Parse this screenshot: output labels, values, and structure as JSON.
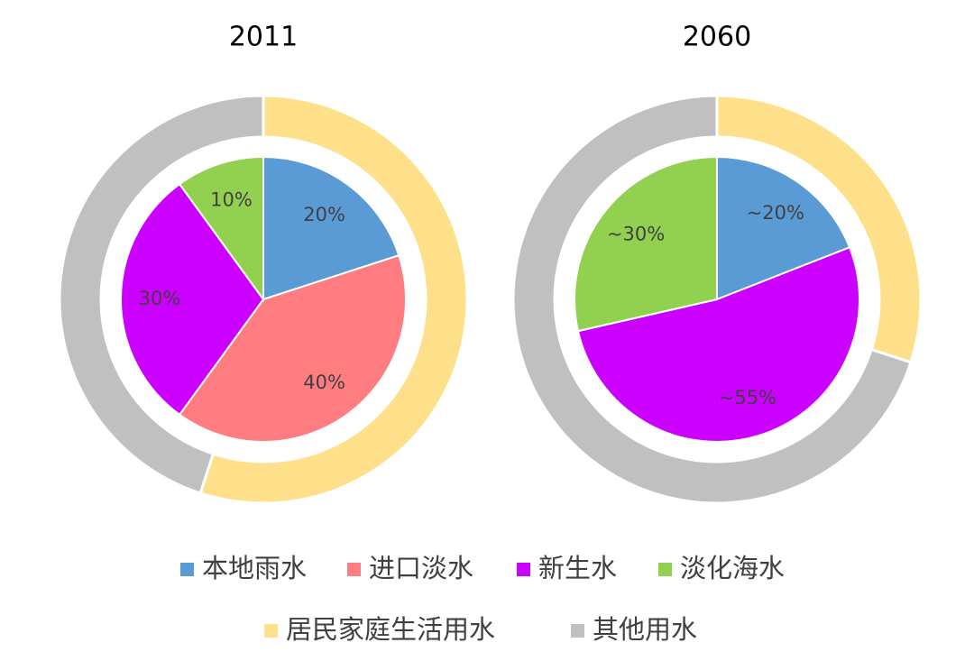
{
  "chart_data": [
    {
      "type": "nested-pie",
      "title": "2011",
      "inner": {
        "values": [
          20,
          40,
          30,
          10
        ],
        "value_labels": [
          "20%",
          "40%",
          "30%",
          "10%"
        ]
      },
      "outer": {
        "values": [
          55,
          45
        ]
      }
    },
    {
      "type": "nested-pie",
      "title": "2060",
      "inner": {
        "values": [
          20,
          null,
          55,
          30
        ],
        "value_labels": [
          "~20%",
          null,
          "~55%",
          "~30%"
        ]
      },
      "outer": {
        "values": [
          30,
          70
        ]
      }
    }
  ],
  "legend": {
    "inner": {
      "categories": [
        "本地雨水",
        "进口淡水",
        "新生水",
        "淡化海水"
      ],
      "colors": [
        "#5b9bd5",
        "#ff7c80",
        "#cc00ff",
        "#92d050"
      ]
    },
    "outer": {
      "categories": [
        "居民家庭生活用水",
        "其他用水"
      ],
      "colors": [
        "#ffe08a",
        "#c0c0c0"
      ]
    }
  }
}
